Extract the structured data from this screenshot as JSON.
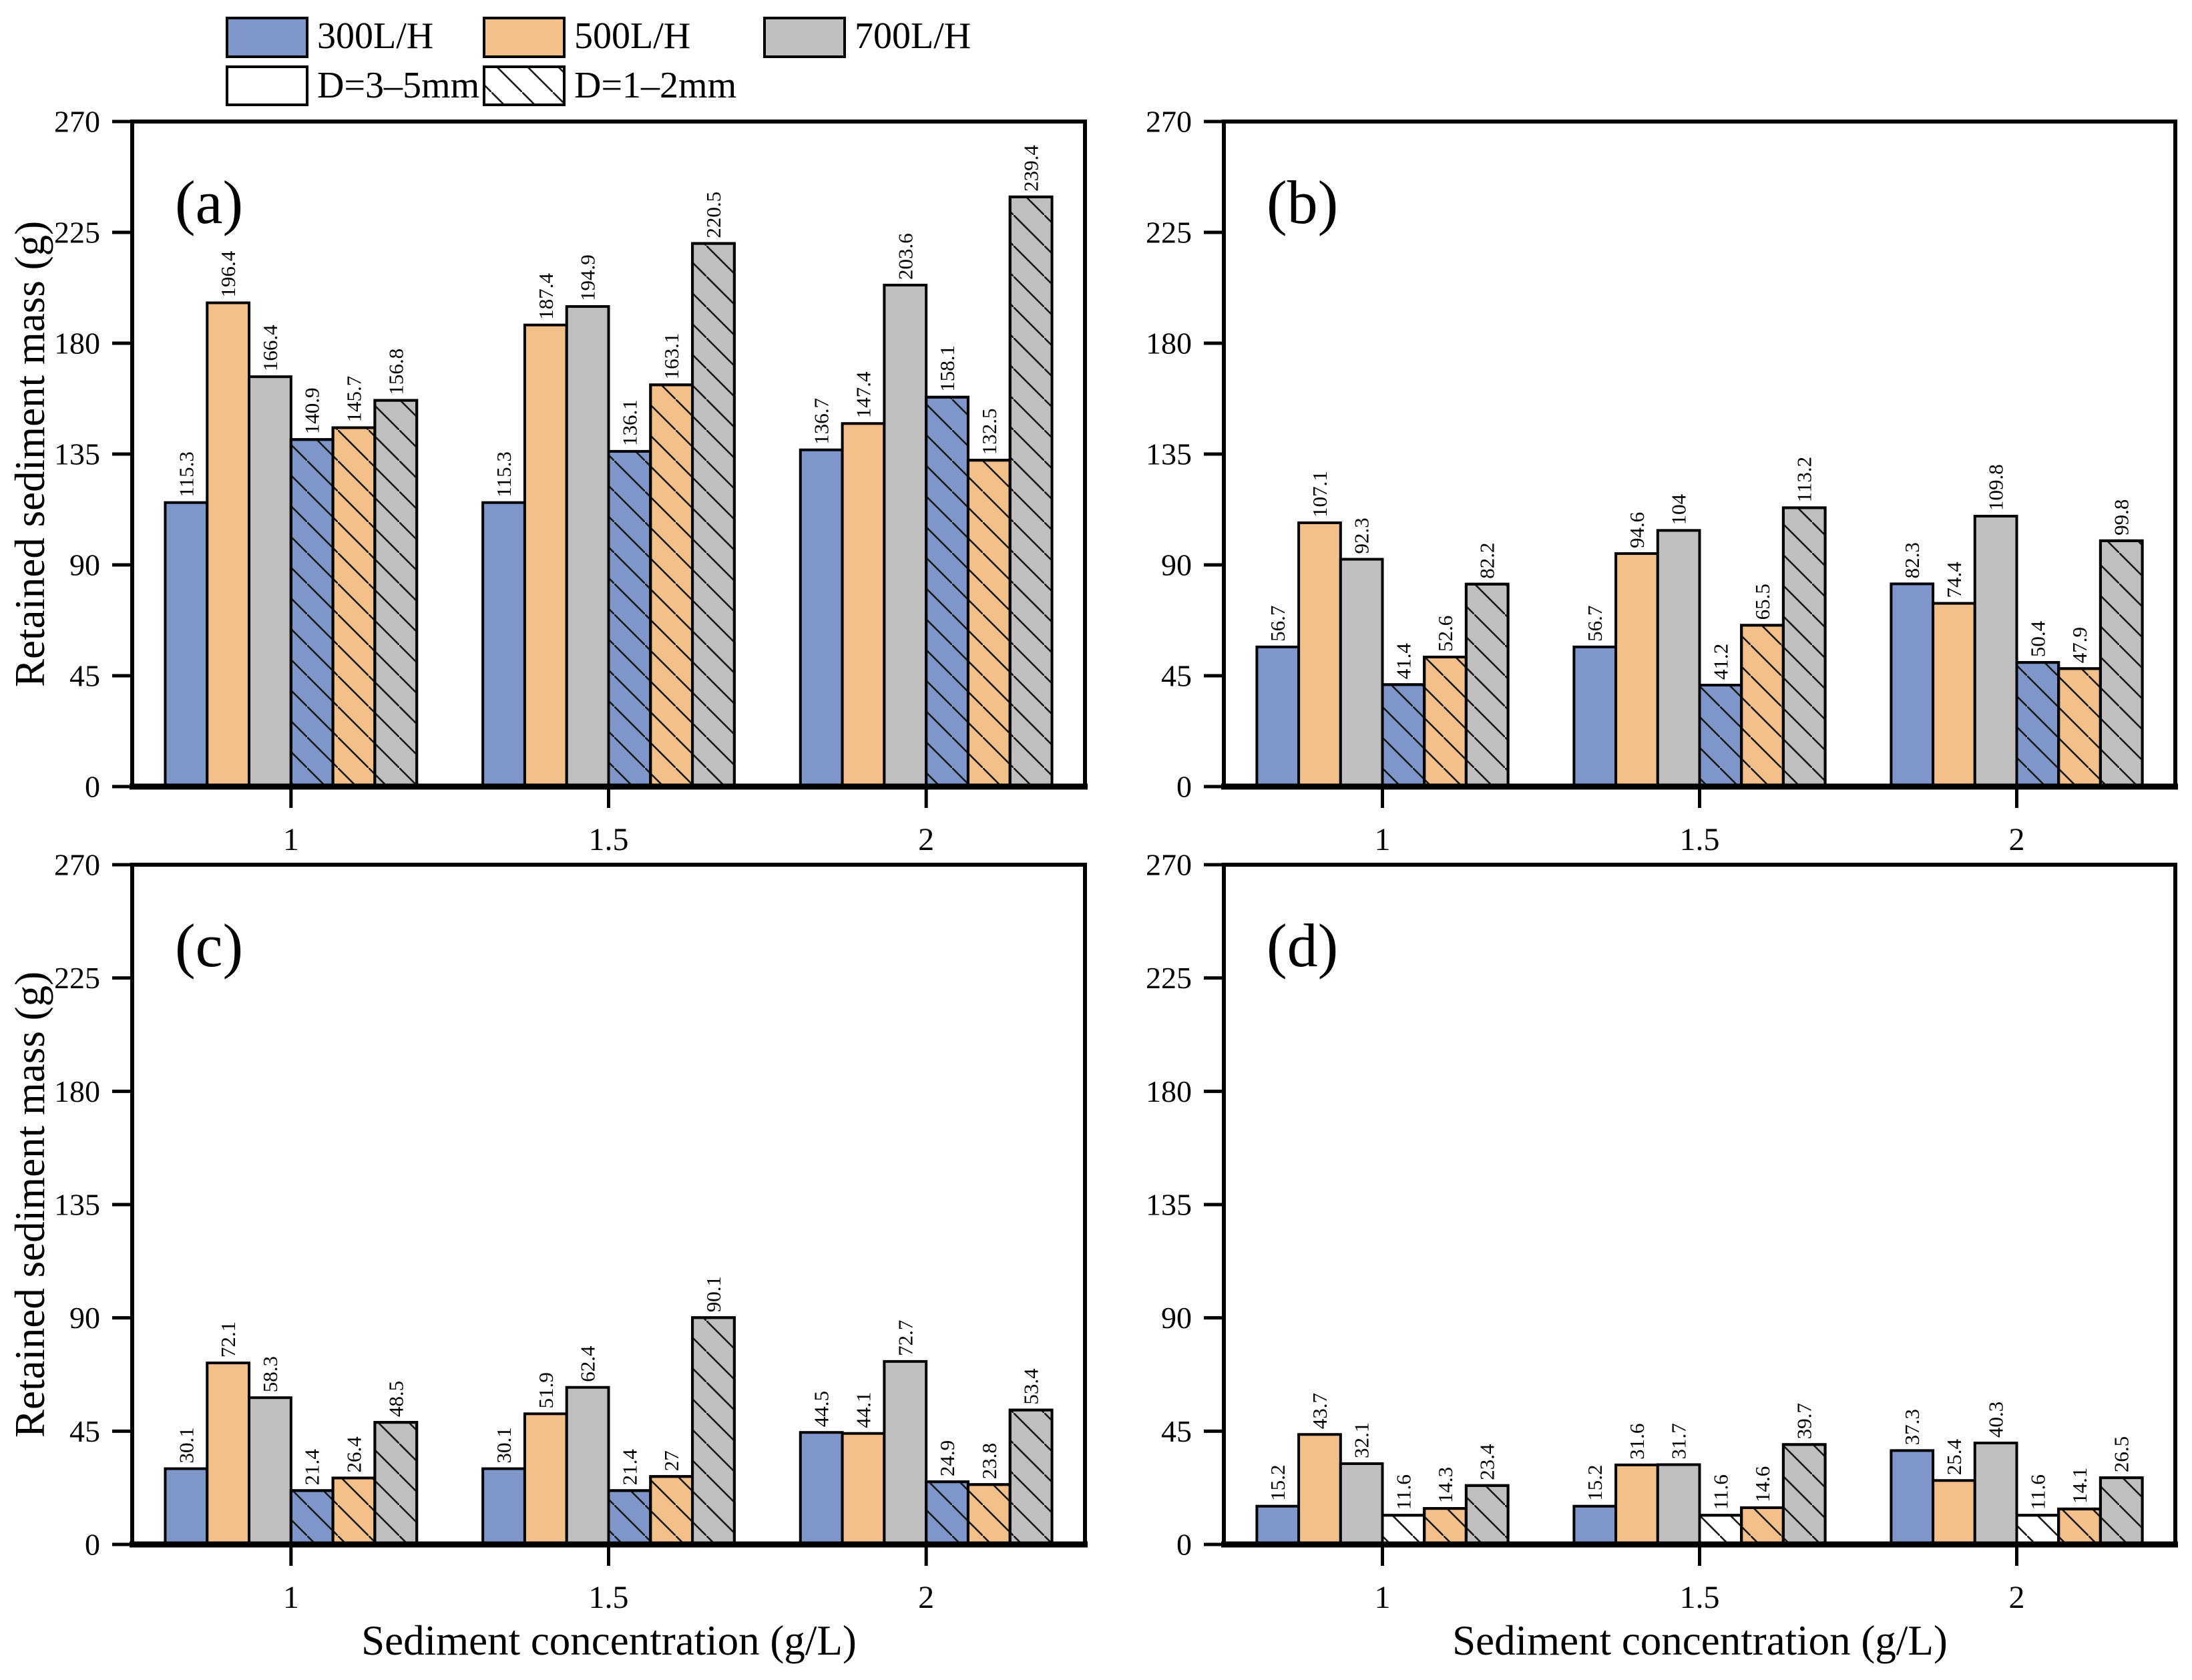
{
  "figure": {
    "y_axis_label": "Retained sediment mass (g)",
    "x_axis_label": "Sediment concentration (g/L)",
    "y_ticks": [
      0,
      45,
      90,
      135,
      180,
      225,
      270
    ],
    "y_max": 270,
    "categories": [
      "1",
      "1.5",
      "2"
    ]
  },
  "colors": {
    "blue_300": "#7E96CA",
    "orange_500": "#F4C08A",
    "gray_700": "#BFBFBF",
    "white_fill": "#FFFFFF",
    "edge": "#000000"
  },
  "legend": {
    "row1": [
      {
        "label": "300L/H",
        "fill": "#7E96CA",
        "hatch": false
      },
      {
        "label": "500L/H",
        "fill": "#F4C08A",
        "hatch": false
      },
      {
        "label": "700L/H",
        "fill": "#BFBFBF",
        "hatch": false
      }
    ],
    "row2": [
      {
        "label": "D=3–5mm",
        "fill": "#FFFFFF",
        "hatch": false
      },
      {
        "label": "D=1–2mm",
        "fill": "#FFFFFF",
        "hatch": true
      }
    ]
  },
  "chart_data": [
    {
      "type": "bar",
      "panel": "(a)",
      "categories": [
        "1",
        "1.5",
        "2"
      ],
      "ylim": [
        0,
        270
      ],
      "xlabel": "",
      "ylabel": "Retained sediment mass (g)",
      "legend_position": "top-left-outside",
      "grid": false,
      "series": [
        {
          "name": "300L/H, D=3–5mm",
          "fill": "#7E96CA",
          "hatch": false,
          "values": [
            115.3,
            115.3,
            136.7
          ]
        },
        {
          "name": "500L/H, D=3–5mm",
          "fill": "#F4C08A",
          "hatch": false,
          "values": [
            196.4,
            187.4,
            147.4
          ]
        },
        {
          "name": "700L/H, D=3–5mm",
          "fill": "#BFBFBF",
          "hatch": false,
          "values": [
            166.4,
            194.9,
            203.6
          ]
        },
        {
          "name": "300L/H, D=1–2mm",
          "fill": "#7E96CA",
          "hatch": true,
          "values": [
            140.9,
            136.1,
            158.1
          ]
        },
        {
          "name": "500L/H, D=1–2mm",
          "fill": "#F4C08A",
          "hatch": true,
          "values": [
            145.7,
            163.1,
            132.5
          ]
        },
        {
          "name": "700L/H, D=1–2mm",
          "fill": "#BFBFBF",
          "hatch": true,
          "values": [
            156.8,
            220.5,
            239.4
          ]
        }
      ]
    },
    {
      "type": "bar",
      "panel": "(b)",
      "categories": [
        "1",
        "1.5",
        "2"
      ],
      "ylim": [
        0,
        270
      ],
      "xlabel": "",
      "ylabel": "",
      "grid": false,
      "series": [
        {
          "name": "300L/H, D=3–5mm",
          "fill": "#7E96CA",
          "hatch": false,
          "values": [
            56.7,
            56.7,
            82.3
          ]
        },
        {
          "name": "500L/H, D=3–5mm",
          "fill": "#F4C08A",
          "hatch": false,
          "values": [
            107.1,
            94.6,
            74.4
          ]
        },
        {
          "name": "700L/H, D=3–5mm",
          "fill": "#BFBFBF",
          "hatch": false,
          "values": [
            92.3,
            104,
            109.8
          ]
        },
        {
          "name": "300L/H, D=1–2mm",
          "fill": "#7E96CA",
          "hatch": true,
          "values": [
            41.4,
            41.2,
            50.4
          ]
        },
        {
          "name": "500L/H, D=1–2mm",
          "fill": "#F4C08A",
          "hatch": true,
          "values": [
            52.6,
            65.5,
            47.9
          ]
        },
        {
          "name": "700L/H, D=1–2mm",
          "fill": "#BFBFBF",
          "hatch": true,
          "values": [
            82.2,
            113.2,
            99.8
          ]
        }
      ]
    },
    {
      "type": "bar",
      "panel": "(c)",
      "categories": [
        "1",
        "1.5",
        "2"
      ],
      "ylim": [
        0,
        270
      ],
      "xlabel": "Sediment concentration (g/L)",
      "ylabel": "Retained sediment mass (g)",
      "grid": false,
      "series": [
        {
          "name": "300L/H, D=3–5mm",
          "fill": "#7E96CA",
          "hatch": false,
          "values": [
            30.1,
            30.1,
            44.5
          ]
        },
        {
          "name": "500L/H, D=3–5mm",
          "fill": "#F4C08A",
          "hatch": false,
          "values": [
            72.1,
            51.9,
            44.1
          ]
        },
        {
          "name": "700L/H, D=3–5mm",
          "fill": "#BFBFBF",
          "hatch": false,
          "values": [
            58.3,
            62.4,
            72.7
          ]
        },
        {
          "name": "300L/H, D=1–2mm",
          "fill": "#7E96CA",
          "hatch": true,
          "values": [
            21.4,
            21.4,
            24.9
          ]
        },
        {
          "name": "500L/H, D=1–2mm",
          "fill": "#F4C08A",
          "hatch": true,
          "values": [
            26.4,
            27,
            23.8
          ]
        },
        {
          "name": "700L/H, D=1–2mm",
          "fill": "#BFBFBF",
          "hatch": true,
          "values": [
            48.5,
            90.1,
            53.4
          ]
        }
      ]
    },
    {
      "type": "bar",
      "panel": "(d)",
      "categories": [
        "1",
        "1.5",
        "2"
      ],
      "ylim": [
        0,
        270
      ],
      "xlabel": "Sediment concentration (g/L)",
      "ylabel": "",
      "grid": false,
      "series": [
        {
          "name": "300L/H, D=3–5mm",
          "fill": "#7E96CA",
          "hatch": false,
          "values": [
            15.2,
            15.2,
            37.3
          ]
        },
        {
          "name": "500L/H, D=3–5mm",
          "fill": "#F4C08A",
          "hatch": false,
          "values": [
            43.7,
            31.6,
            25.4
          ]
        },
        {
          "name": "700L/H, D=3–5mm",
          "fill": "#BFBFBF",
          "hatch": false,
          "values": [
            32.1,
            31.7,
            40.3
          ]
        },
        {
          "name": "300L/H, D=1–2mm",
          "fill": "#FFFFFF",
          "hatch": true,
          "values": [
            11.6,
            11.6,
            11.6
          ]
        },
        {
          "name": "500L/H, D=1–2mm",
          "fill": "#F4C08A",
          "hatch": true,
          "values": [
            14.3,
            14.6,
            14.1
          ]
        },
        {
          "name": "700L/H, D=1–2mm",
          "fill": "#BFBFBF",
          "hatch": true,
          "values": [
            23.4,
            39.7,
            26.5
          ]
        }
      ]
    }
  ]
}
